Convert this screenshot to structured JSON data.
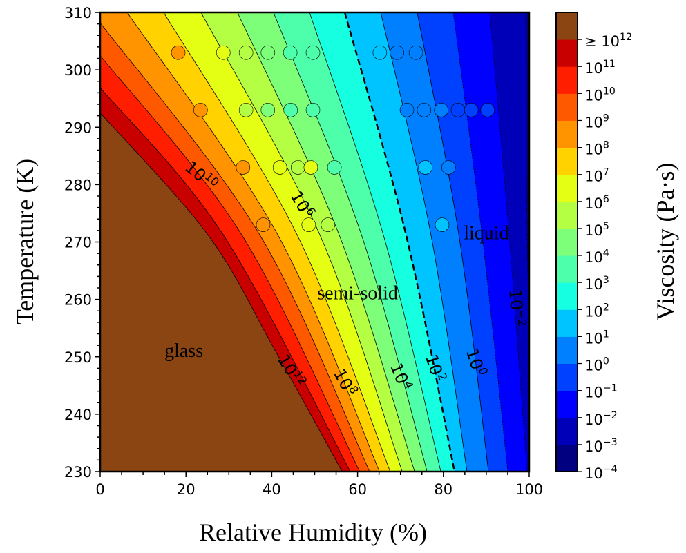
{
  "chart_data": {
    "type": "contour",
    "xlabel": "Relative Humidity (%)",
    "ylabel": "Temperature (K)",
    "colorbar_label": "Viscosity (Pa·s)",
    "xlim": [
      0,
      100
    ],
    "ylim": [
      230,
      310
    ],
    "xticks": [
      "0",
      "20",
      "40",
      "60",
      "80",
      "100"
    ],
    "yticks": [
      "230",
      "240",
      "250",
      "260",
      "270",
      "280",
      "290",
      "300",
      "310"
    ],
    "band_colors": [
      "#000080",
      "#0000b8",
      "#0000ff",
      "#0040ff",
      "#0080ff",
      "#00c4ff",
      "#16ffe1",
      "#4dffaa",
      "#7dff7a",
      "#b4ff43",
      "#e4ff13",
      "#ffd200",
      "#ff9400",
      "#ff5900",
      "#ff1e00",
      "#c80000",
      "#8b4513"
    ],
    "colorbar_ticks": [
      {
        "prefix": "",
        "base": "10",
        "exp": "−4"
      },
      {
        "prefix": "",
        "base": "10",
        "exp": "−3"
      },
      {
        "prefix": "",
        "base": "10",
        "exp": "−2"
      },
      {
        "prefix": "",
        "base": "10",
        "exp": "−1"
      },
      {
        "prefix": "",
        "base": "10",
        "exp": "0"
      },
      {
        "prefix": "",
        "base": "10",
        "exp": "1"
      },
      {
        "prefix": "",
        "base": "10",
        "exp": "2"
      },
      {
        "prefix": "",
        "base": "10",
        "exp": "3"
      },
      {
        "prefix": "",
        "base": "10",
        "exp": "4"
      },
      {
        "prefix": "",
        "base": "10",
        "exp": "5"
      },
      {
        "prefix": "",
        "base": "10",
        "exp": "6"
      },
      {
        "prefix": "",
        "base": "10",
        "exp": "7"
      },
      {
        "prefix": "",
        "base": "10",
        "exp": "8"
      },
      {
        "prefix": "",
        "base": "10",
        "exp": "9"
      },
      {
        "prefix": "",
        "base": "10",
        "exp": "10"
      },
      {
        "prefix": "",
        "base": "10",
        "exp": "11"
      },
      {
        "prefix": "≥ ",
        "base": "10",
        "exp": "12"
      }
    ],
    "contours": [
      {
        "log10": -3,
        "points": [
          [
            99.2,
            310
          ],
          [
            99.5,
            271.25
          ],
          [
            101,
            230
          ]
        ]
      },
      {
        "log10": -2,
        "points": [
          [
            90.8,
            310
          ],
          [
            95.3,
            271.25
          ],
          [
            99.5,
            230
          ]
        ]
      },
      {
        "log10": -1,
        "points": [
          [
            82.3,
            310
          ],
          [
            89,
            271.25
          ],
          [
            95,
            230
          ]
        ]
      },
      {
        "log10": 0,
        "points": [
          [
            73.9,
            310
          ],
          [
            83.6,
            271.25
          ],
          [
            90.5,
            230
          ]
        ]
      },
      {
        "log10": 1,
        "points": [
          [
            65.4,
            310
          ],
          [
            77.1,
            271.25
          ],
          [
            85.5,
            230
          ]
        ]
      },
      {
        "log10": 2,
        "points": [
          [
            57,
            310
          ],
          [
            71.3,
            271.25
          ],
          [
            82.6,
            230
          ]
        ],
        "dashed": true
      },
      {
        "log10": 3,
        "points": [
          [
            48.8,
            310
          ],
          [
            66,
            271.25
          ],
          [
            79.4,
            230
          ]
        ]
      },
      {
        "log10": 4,
        "points": [
          [
            40.4,
            310
          ],
          [
            60.9,
            271.25
          ],
          [
            76.2,
            230
          ]
        ]
      },
      {
        "log10": 5,
        "points": [
          [
            32,
            310
          ],
          [
            55.7,
            271.25
          ],
          [
            73.3,
            230
          ]
        ]
      },
      {
        "log10": 6,
        "points": [
          [
            23.5,
            310
          ],
          [
            51.2,
            271.25
          ],
          [
            70.4,
            230
          ]
        ]
      },
      {
        "log10": 7,
        "points": [
          [
            14.8,
            310
          ],
          [
            45.9,
            271.25
          ],
          [
            67.6,
            230
          ]
        ]
      },
      {
        "log10": 8,
        "points": [
          [
            6.3,
            310
          ],
          [
            41.4,
            271.25
          ],
          [
            65.1,
            230
          ]
        ]
      },
      {
        "log10": 9,
        "points": [
          [
            0,
            308.2
          ],
          [
            37.2,
            271.25
          ],
          [
            62.8,
            230
          ]
        ]
      },
      {
        "log10": 10,
        "points": [
          [
            0,
            302.5
          ],
          [
            33,
            271.25
          ],
          [
            60.5,
            230
          ]
        ]
      },
      {
        "log10": 11,
        "points": [
          [
            0,
            296.9
          ],
          [
            28.7,
            271.25
          ],
          [
            58.3,
            230
          ]
        ]
      },
      {
        "log10": 12,
        "points": [
          [
            0,
            292.5
          ],
          [
            25.1,
            271.25
          ],
          [
            40.7,
            251.2
          ],
          [
            56.4,
            230
          ]
        ]
      }
    ],
    "contour_labels": [
      {
        "base": "10",
        "exp": "10",
        "rh": 23.5,
        "t": 281.5,
        "angle": 40
      },
      {
        "base": "10",
        "exp": "6",
        "rh": 47,
        "t": 276.5,
        "angle": 60
      },
      {
        "base": "10",
        "exp": "12",
        "rh": 44.5,
        "t": 247.5,
        "angle": 58
      },
      {
        "base": "10",
        "exp": "8",
        "rh": 57,
        "t": 245.5,
        "angle": 62
      },
      {
        "base": "10",
        "exp": "4",
        "rh": 70,
        "t": 246.5,
        "angle": 68
      },
      {
        "base": "10",
        "exp": "2",
        "rh": 78,
        "t": 248,
        "angle": 72
      },
      {
        "base": "10",
        "exp": "0",
        "rh": 87.5,
        "t": 249,
        "angle": 72
      },
      {
        "base": "10",
        "exp": "−2",
        "rh": 97,
        "t": 258.5,
        "angle": 85
      }
    ],
    "annotations": [
      {
        "text": "glass",
        "rh": 19.5,
        "t": 250
      },
      {
        "text": "semi-solid",
        "rh": 60,
        "t": 260
      },
      {
        "text": "liquid",
        "rh": 90,
        "t": 270.5
      }
    ],
    "points": [
      {
        "rh": 18.2,
        "t": 303,
        "color": "#ff9400"
      },
      {
        "rh": 28.7,
        "t": 303,
        "color": "#e4ff13"
      },
      {
        "rh": 34,
        "t": 303,
        "color": "#b4ff43"
      },
      {
        "rh": 39.1,
        "t": 303,
        "color": "#7dff7a"
      },
      {
        "rh": 44.3,
        "t": 303,
        "color": "#4dffaa"
      },
      {
        "rh": 49.6,
        "t": 303,
        "color": "#4dffaa"
      },
      {
        "rh": 65.2,
        "t": 303,
        "color": "#00c4ff"
      },
      {
        "rh": 69.2,
        "t": 303,
        "color": "#0080ff"
      },
      {
        "rh": 73.6,
        "t": 303,
        "color": "#0080ff"
      },
      {
        "rh": 23.4,
        "t": 293,
        "color": "#ff9400"
      },
      {
        "rh": 34,
        "t": 293,
        "color": "#b4ff43"
      },
      {
        "rh": 39.1,
        "t": 293,
        "color": "#7dff7a"
      },
      {
        "rh": 44.4,
        "t": 293,
        "color": "#4dffaa"
      },
      {
        "rh": 49.6,
        "t": 293,
        "color": "#4dffaa"
      },
      {
        "rh": 71.5,
        "t": 293,
        "color": "#0080ff"
      },
      {
        "rh": 75.5,
        "t": 293,
        "color": "#0080ff"
      },
      {
        "rh": 79.5,
        "t": 293,
        "color": "#0080ff"
      },
      {
        "rh": 83.4,
        "t": 293,
        "color": "#0040ff"
      },
      {
        "rh": 86.5,
        "t": 293,
        "color": "#0040ff"
      },
      {
        "rh": 90.3,
        "t": 293,
        "color": "#0040ff"
      },
      {
        "rh": 33.3,
        "t": 283,
        "color": "#ff9400"
      },
      {
        "rh": 41.9,
        "t": 283,
        "color": "#e4ff13"
      },
      {
        "rh": 46.1,
        "t": 283,
        "color": "#b4ff43"
      },
      {
        "rh": 49.1,
        "t": 283,
        "color": "#e4ff13"
      },
      {
        "rh": 54.6,
        "t": 283,
        "color": "#4dffaa"
      },
      {
        "rh": 75.8,
        "t": 283,
        "color": "#00c4ff"
      },
      {
        "rh": 81.2,
        "t": 283,
        "color": "#0080ff"
      },
      {
        "rh": 38,
        "t": 273,
        "color": "#ff9400"
      },
      {
        "rh": 48.6,
        "t": 273,
        "color": "#e4ff13"
      },
      {
        "rh": 53.1,
        "t": 273,
        "color": "#b4ff43"
      },
      {
        "rh": 79.7,
        "t": 273,
        "color": "#00c4ff"
      }
    ]
  }
}
